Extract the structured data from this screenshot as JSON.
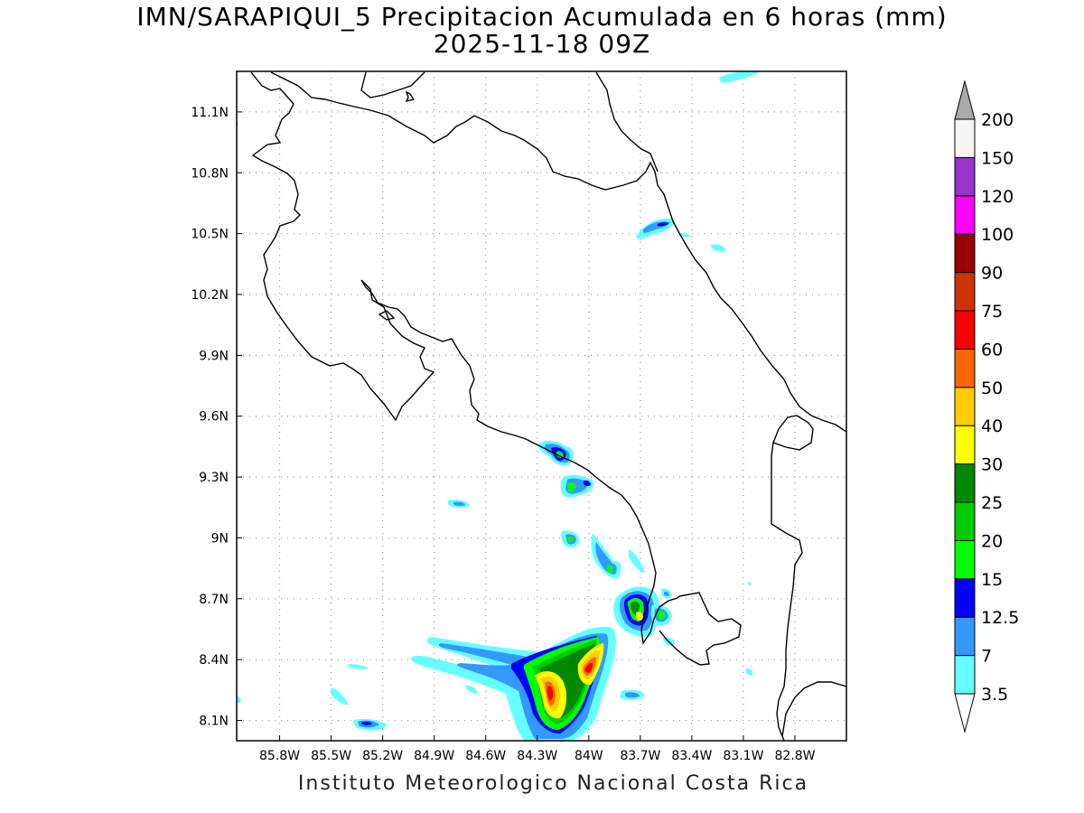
{
  "title": "IMN/SARAPIQUI_5 Precipitacion Acumulada en 6 horas (mm)",
  "subtitle": "2025-11-18 09Z",
  "credit": "Instituto Meteorologico Nacional Costa Rica",
  "map": {
    "lon_range": [
      -86.05,
      -82.5
    ],
    "lat_range": [
      8.0,
      11.3
    ],
    "lon_ticks": [
      {
        "value": -85.8,
        "label": "85.8W"
      },
      {
        "value": -85.5,
        "label": "85.5W"
      },
      {
        "value": -85.2,
        "label": "85.2W"
      },
      {
        "value": -84.9,
        "label": "84.9W"
      },
      {
        "value": -84.6,
        "label": "84.6W"
      },
      {
        "value": -84.3,
        "label": "84.3W"
      },
      {
        "value": -84.0,
        "label": "84W"
      },
      {
        "value": -83.7,
        "label": "83.7W"
      },
      {
        "value": -83.4,
        "label": "83.4W"
      },
      {
        "value": -83.1,
        "label": "83.1W"
      },
      {
        "value": -82.8,
        "label": "82.8W"
      }
    ],
    "lat_ticks": [
      {
        "value": 8.1,
        "label": "8.1N"
      },
      {
        "value": 8.4,
        "label": "8.4N"
      },
      {
        "value": 8.7,
        "label": "8.7N"
      },
      {
        "value": 9.0,
        "label": "9N"
      },
      {
        "value": 9.3,
        "label": "9.3N"
      },
      {
        "value": 9.6,
        "label": "9.6N"
      },
      {
        "value": 9.9,
        "label": "9.9N"
      },
      {
        "value": 10.2,
        "label": "10.2N"
      },
      {
        "value": 10.5,
        "label": "10.5N"
      },
      {
        "value": 10.8,
        "label": "10.8N"
      },
      {
        "value": 11.1,
        "label": "11.1N"
      }
    ],
    "grid": "dotted"
  },
  "colorbar": {
    "levels": [
      {
        "label": "3.5",
        "color": "#66ffff"
      },
      {
        "label": "7",
        "color": "#3399ff"
      },
      {
        "label": "12.5",
        "color": "#0000ff"
      },
      {
        "label": "15",
        "color": "#00ff00"
      },
      {
        "label": "20",
        "color": "#00cc00"
      },
      {
        "label": "25",
        "color": "#008800"
      },
      {
        "label": "30",
        "color": "#ffff00"
      },
      {
        "label": "40",
        "color": "#ffcc00"
      },
      {
        "label": "50",
        "color": "#ff6600"
      },
      {
        "label": "60",
        "color": "#ff0000"
      },
      {
        "label": "75",
        "color": "#cc3300"
      },
      {
        "label": "90",
        "color": "#990000"
      },
      {
        "label": "100",
        "color": "#ff00ff"
      },
      {
        "label": "120",
        "color": "#9933cc"
      },
      {
        "label": "150",
        "color": "#f5f5f5"
      },
      {
        "label": "200",
        "color": "#aaaaaa"
      }
    ],
    "lower_extend_color": "#ffffff",
    "upper_extend_color": "#aaaaaa"
  },
  "colors": {
    "coastline": "#000000",
    "grid": "#999999",
    "frame": "#000000"
  }
}
